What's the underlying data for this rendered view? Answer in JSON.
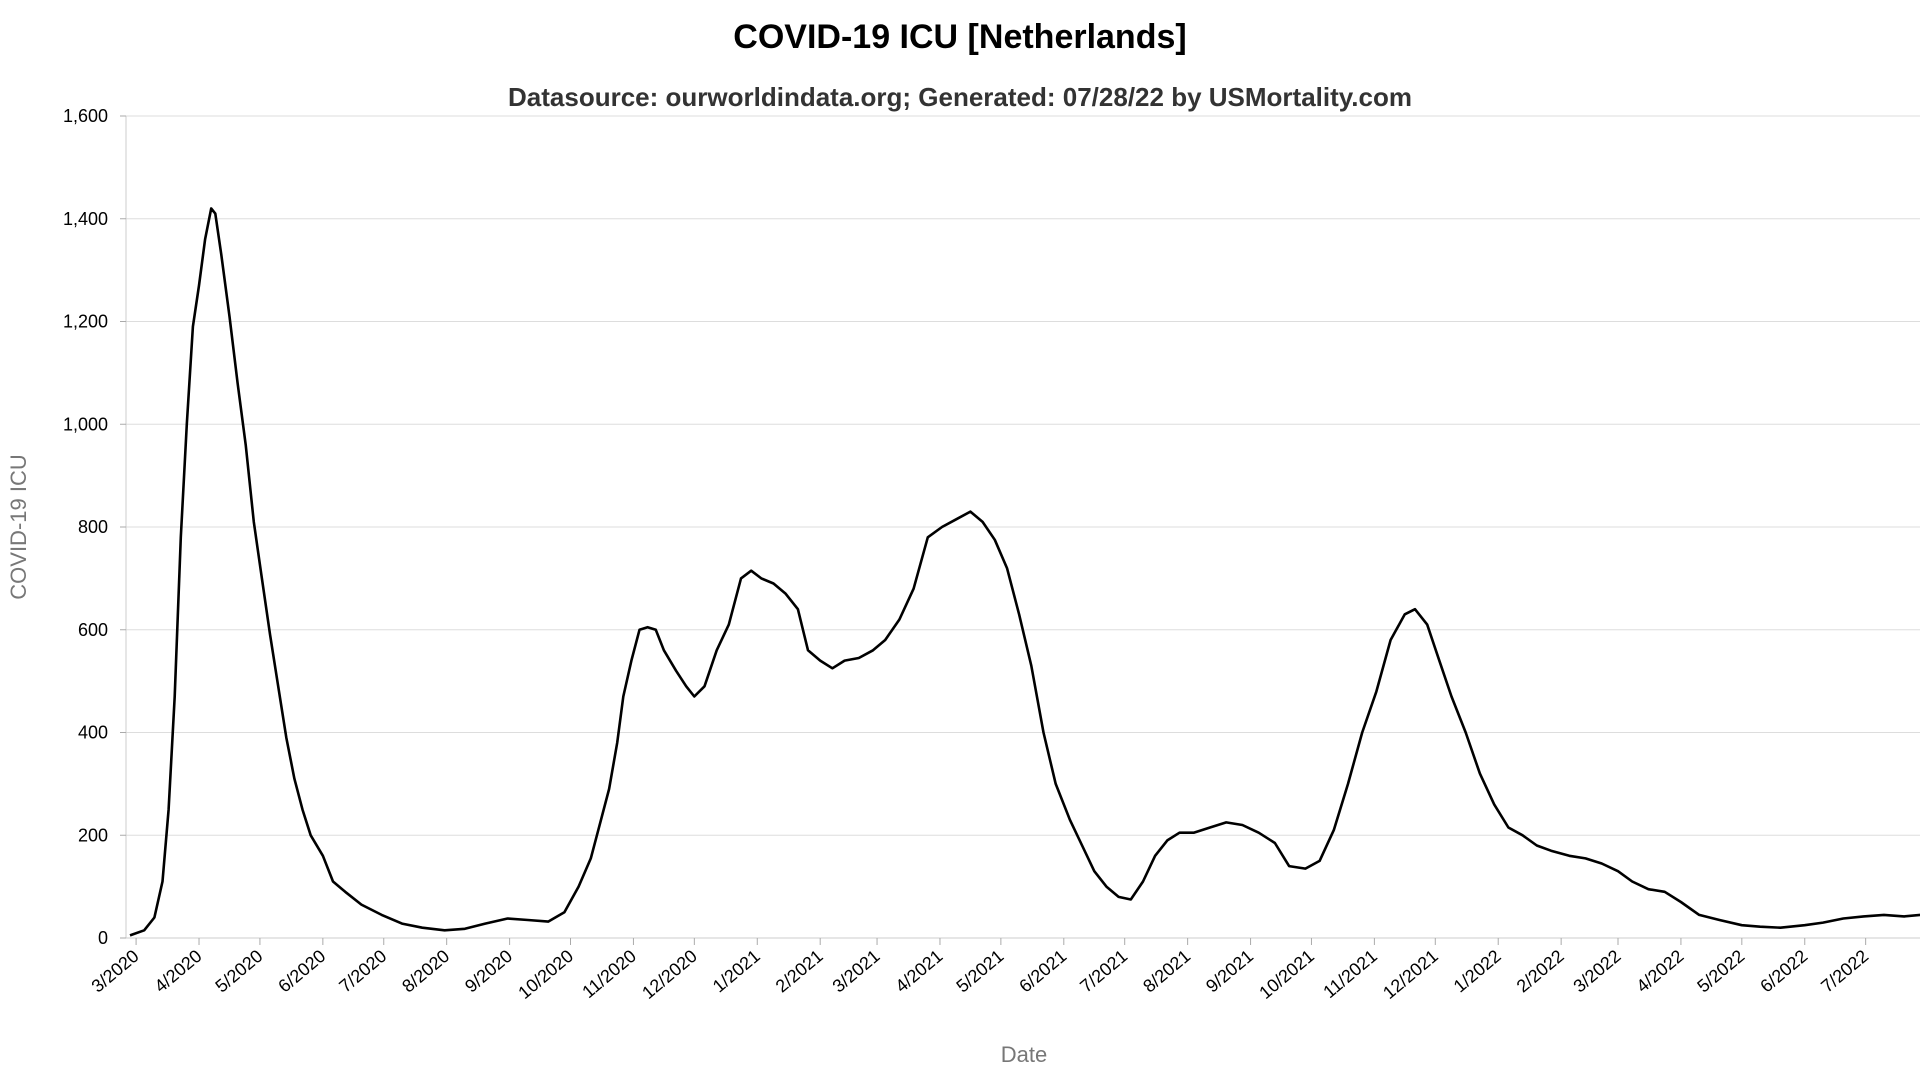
{
  "chart_data": {
    "type": "line",
    "title": "COVID-19 ICU [Netherlands]",
    "subtitle": "Datasource: ourworldindata.org; Generated: 07/28/22 by USMortality.com",
    "xlabel": "Date",
    "ylabel": "COVID-19 ICU",
    "ylim": [
      0,
      1600
    ],
    "y_ticks": [
      0,
      200,
      400,
      600,
      800,
      1000,
      1200,
      1400,
      1600
    ],
    "y_tick_labels": [
      "0",
      "200",
      "400",
      "600",
      "800",
      "1,000",
      "1,200",
      "1,400",
      "1,600"
    ],
    "x_range": [
      "2020-02-27",
      "2022-07-28"
    ],
    "x_ticks": [
      {
        "date": "2020-03-01",
        "label": "3/2020"
      },
      {
        "date": "2020-04-01",
        "label": "4/2020"
      },
      {
        "date": "2020-05-01",
        "label": "5/2020"
      },
      {
        "date": "2020-06-01",
        "label": "6/2020"
      },
      {
        "date": "2020-07-01",
        "label": "7/2020"
      },
      {
        "date": "2020-08-01",
        "label": "8/2020"
      },
      {
        "date": "2020-09-01",
        "label": "9/2020"
      },
      {
        "date": "2020-10-01",
        "label": "10/2020"
      },
      {
        "date": "2020-11-01",
        "label": "11/2020"
      },
      {
        "date": "2020-12-01",
        "label": "12/2020"
      },
      {
        "date": "2021-01-01",
        "label": "1/2021"
      },
      {
        "date": "2021-02-01",
        "label": "2/2021"
      },
      {
        "date": "2021-03-01",
        "label": "3/2021"
      },
      {
        "date": "2021-04-01",
        "label": "4/2021"
      },
      {
        "date": "2021-05-01",
        "label": "5/2021"
      },
      {
        "date": "2021-06-01",
        "label": "6/2021"
      },
      {
        "date": "2021-07-01",
        "label": "7/2021"
      },
      {
        "date": "2021-08-01",
        "label": "8/2021"
      },
      {
        "date": "2021-09-01",
        "label": "9/2021"
      },
      {
        "date": "2021-10-01",
        "label": "10/2021"
      },
      {
        "date": "2021-11-01",
        "label": "11/2021"
      },
      {
        "date": "2021-12-01",
        "label": "12/2021"
      },
      {
        "date": "2022-01-01",
        "label": "1/2022"
      },
      {
        "date": "2022-02-01",
        "label": "2/2022"
      },
      {
        "date": "2022-03-01",
        "label": "3/2022"
      },
      {
        "date": "2022-04-01",
        "label": "4/2022"
      },
      {
        "date": "2022-05-01",
        "label": "5/2022"
      },
      {
        "date": "2022-06-01",
        "label": "6/2022"
      },
      {
        "date": "2022-07-01",
        "label": "7/2022"
      }
    ],
    "grid": true,
    "legend": "none",
    "line_color": "#000000",
    "series": [
      {
        "points": [
          [
            "2020-02-27",
            5
          ],
          [
            "2020-03-05",
            15
          ],
          [
            "2020-03-10",
            40
          ],
          [
            "2020-03-14",
            110
          ],
          [
            "2020-03-17",
            250
          ],
          [
            "2020-03-20",
            470
          ],
          [
            "2020-03-23",
            780
          ],
          [
            "2020-03-26",
            1000
          ],
          [
            "2020-03-29",
            1190
          ],
          [
            "2020-04-01",
            1270
          ],
          [
            "2020-04-04",
            1360
          ],
          [
            "2020-04-07",
            1420
          ],
          [
            "2020-04-09",
            1410
          ],
          [
            "2020-04-12",
            1330
          ],
          [
            "2020-04-16",
            1210
          ],
          [
            "2020-04-20",
            1080
          ],
          [
            "2020-04-24",
            960
          ],
          [
            "2020-04-28",
            810
          ],
          [
            "2020-05-02",
            700
          ],
          [
            "2020-05-06",
            590
          ],
          [
            "2020-05-10",
            490
          ],
          [
            "2020-05-14",
            390
          ],
          [
            "2020-05-18",
            310
          ],
          [
            "2020-05-22",
            250
          ],
          [
            "2020-05-26",
            200
          ],
          [
            "2020-06-01",
            160
          ],
          [
            "2020-06-06",
            110
          ],
          [
            "2020-06-12",
            90
          ],
          [
            "2020-06-20",
            65
          ],
          [
            "2020-06-30",
            45
          ],
          [
            "2020-07-10",
            28
          ],
          [
            "2020-07-20",
            20
          ],
          [
            "2020-07-31",
            15
          ],
          [
            "2020-08-10",
            18
          ],
          [
            "2020-08-20",
            28
          ],
          [
            "2020-08-31",
            38
          ],
          [
            "2020-09-10",
            35
          ],
          [
            "2020-09-20",
            32
          ],
          [
            "2020-09-28",
            50
          ],
          [
            "2020-10-05",
            100
          ],
          [
            "2020-10-11",
            155
          ],
          [
            "2020-10-16",
            230
          ],
          [
            "2020-10-20",
            290
          ],
          [
            "2020-10-24",
            380
          ],
          [
            "2020-10-27",
            470
          ],
          [
            "2020-10-31",
            540
          ],
          [
            "2020-11-04",
            600
          ],
          [
            "2020-11-08",
            605
          ],
          [
            "2020-11-12",
            600
          ],
          [
            "2020-11-16",
            560
          ],
          [
            "2020-11-22",
            520
          ],
          [
            "2020-11-27",
            490
          ],
          [
            "2020-12-01",
            470
          ],
          [
            "2020-12-06",
            490
          ],
          [
            "2020-12-12",
            560
          ],
          [
            "2020-12-18",
            610
          ],
          [
            "2020-12-24",
            700
          ],
          [
            "2020-12-29",
            715
          ],
          [
            "2021-01-03",
            700
          ],
          [
            "2021-01-09",
            690
          ],
          [
            "2021-01-15",
            670
          ],
          [
            "2021-01-21",
            640
          ],
          [
            "2021-01-26",
            560
          ],
          [
            "2021-02-01",
            540
          ],
          [
            "2021-02-07",
            525
          ],
          [
            "2021-02-13",
            540
          ],
          [
            "2021-02-20",
            545
          ],
          [
            "2021-02-27",
            560
          ],
          [
            "2021-03-05",
            580
          ],
          [
            "2021-03-12",
            620
          ],
          [
            "2021-03-19",
            680
          ],
          [
            "2021-03-26",
            780
          ],
          [
            "2021-04-02",
            800
          ],
          [
            "2021-04-09",
            815
          ],
          [
            "2021-04-16",
            830
          ],
          [
            "2021-04-22",
            810
          ],
          [
            "2021-04-28",
            775
          ],
          [
            "2021-05-04",
            720
          ],
          [
            "2021-05-10",
            630
          ],
          [
            "2021-05-16",
            530
          ],
          [
            "2021-05-22",
            400
          ],
          [
            "2021-05-28",
            300
          ],
          [
            "2021-06-04",
            230
          ],
          [
            "2021-06-10",
            180
          ],
          [
            "2021-06-16",
            130
          ],
          [
            "2021-06-22",
            100
          ],
          [
            "2021-06-28",
            80
          ],
          [
            "2021-07-04",
            75
          ],
          [
            "2021-07-10",
            110
          ],
          [
            "2021-07-16",
            160
          ],
          [
            "2021-07-22",
            190
          ],
          [
            "2021-07-28",
            205
          ],
          [
            "2021-08-04",
            205
          ],
          [
            "2021-08-12",
            215
          ],
          [
            "2021-08-20",
            225
          ],
          [
            "2021-08-28",
            220
          ],
          [
            "2021-09-05",
            205
          ],
          [
            "2021-09-13",
            185
          ],
          [
            "2021-09-20",
            140
          ],
          [
            "2021-09-28",
            135
          ],
          [
            "2021-10-05",
            150
          ],
          [
            "2021-10-12",
            210
          ],
          [
            "2021-10-19",
            300
          ],
          [
            "2021-10-26",
            400
          ],
          [
            "2021-11-02",
            480
          ],
          [
            "2021-11-09",
            580
          ],
          [
            "2021-11-16",
            630
          ],
          [
            "2021-11-21",
            640
          ],
          [
            "2021-11-27",
            610
          ],
          [
            "2021-12-03",
            540
          ],
          [
            "2021-12-09",
            470
          ],
          [
            "2021-12-16",
            400
          ],
          [
            "2021-12-23",
            320
          ],
          [
            "2021-12-30",
            260
          ],
          [
            "2022-01-06",
            215
          ],
          [
            "2022-01-13",
            200
          ],
          [
            "2022-01-20",
            180
          ],
          [
            "2022-01-27",
            170
          ],
          [
            "2022-02-05",
            160
          ],
          [
            "2022-02-13",
            155
          ],
          [
            "2022-02-21",
            145
          ],
          [
            "2022-03-01",
            130
          ],
          [
            "2022-03-08",
            110
          ],
          [
            "2022-03-16",
            95
          ],
          [
            "2022-03-24",
            90
          ],
          [
            "2022-04-01",
            70
          ],
          [
            "2022-04-10",
            45
          ],
          [
            "2022-04-20",
            35
          ],
          [
            "2022-05-01",
            25
          ],
          [
            "2022-05-10",
            22
          ],
          [
            "2022-05-20",
            20
          ],
          [
            "2022-06-01",
            25
          ],
          [
            "2022-06-10",
            30
          ],
          [
            "2022-06-20",
            38
          ],
          [
            "2022-06-30",
            42
          ],
          [
            "2022-07-10",
            45
          ],
          [
            "2022-07-20",
            42
          ],
          [
            "2022-07-28",
            45
          ]
        ]
      }
    ]
  }
}
